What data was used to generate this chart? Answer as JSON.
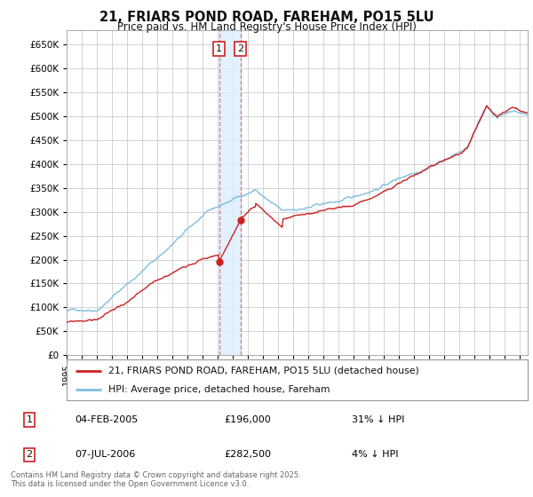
{
  "title": "21, FRIARS POND ROAD, FAREHAM, PO15 5LU",
  "subtitle": "Price paid vs. HM Land Registry's House Price Index (HPI)",
  "legend_line1": "21, FRIARS POND ROAD, FAREHAM, PO15 5LU (detached house)",
  "legend_line2": "HPI: Average price, detached house, Fareham",
  "transaction1_date": "04-FEB-2005",
  "transaction1_price": 196000,
  "transaction1_hpi": "31% ↓ HPI",
  "transaction2_date": "07-JUL-2006",
  "transaction2_price": 282500,
  "transaction2_hpi": "4% ↓ HPI",
  "footer": "Contains HM Land Registry data © Crown copyright and database right 2025.\nThis data is licensed under the Open Government Licence v3.0.",
  "ylim": [
    0,
    680000
  ],
  "yticks": [
    0,
    50000,
    100000,
    150000,
    200000,
    250000,
    300000,
    350000,
    400000,
    450000,
    500000,
    550000,
    600000,
    650000
  ],
  "xlim_start": 1995,
  "xlim_end": 2025.5,
  "background_color": "#ffffff",
  "grid_color": "#cccccc",
  "hpi_line_color": "#7fbfdf",
  "price_line_color": "#cc2222",
  "vline_color": "#dd6666",
  "span_color": "#ddeeff",
  "label_box_color": "#cc2222",
  "t1_x": 2005.083,
  "t1_y": 196000,
  "t2_x": 2006.5,
  "t2_y": 282500
}
